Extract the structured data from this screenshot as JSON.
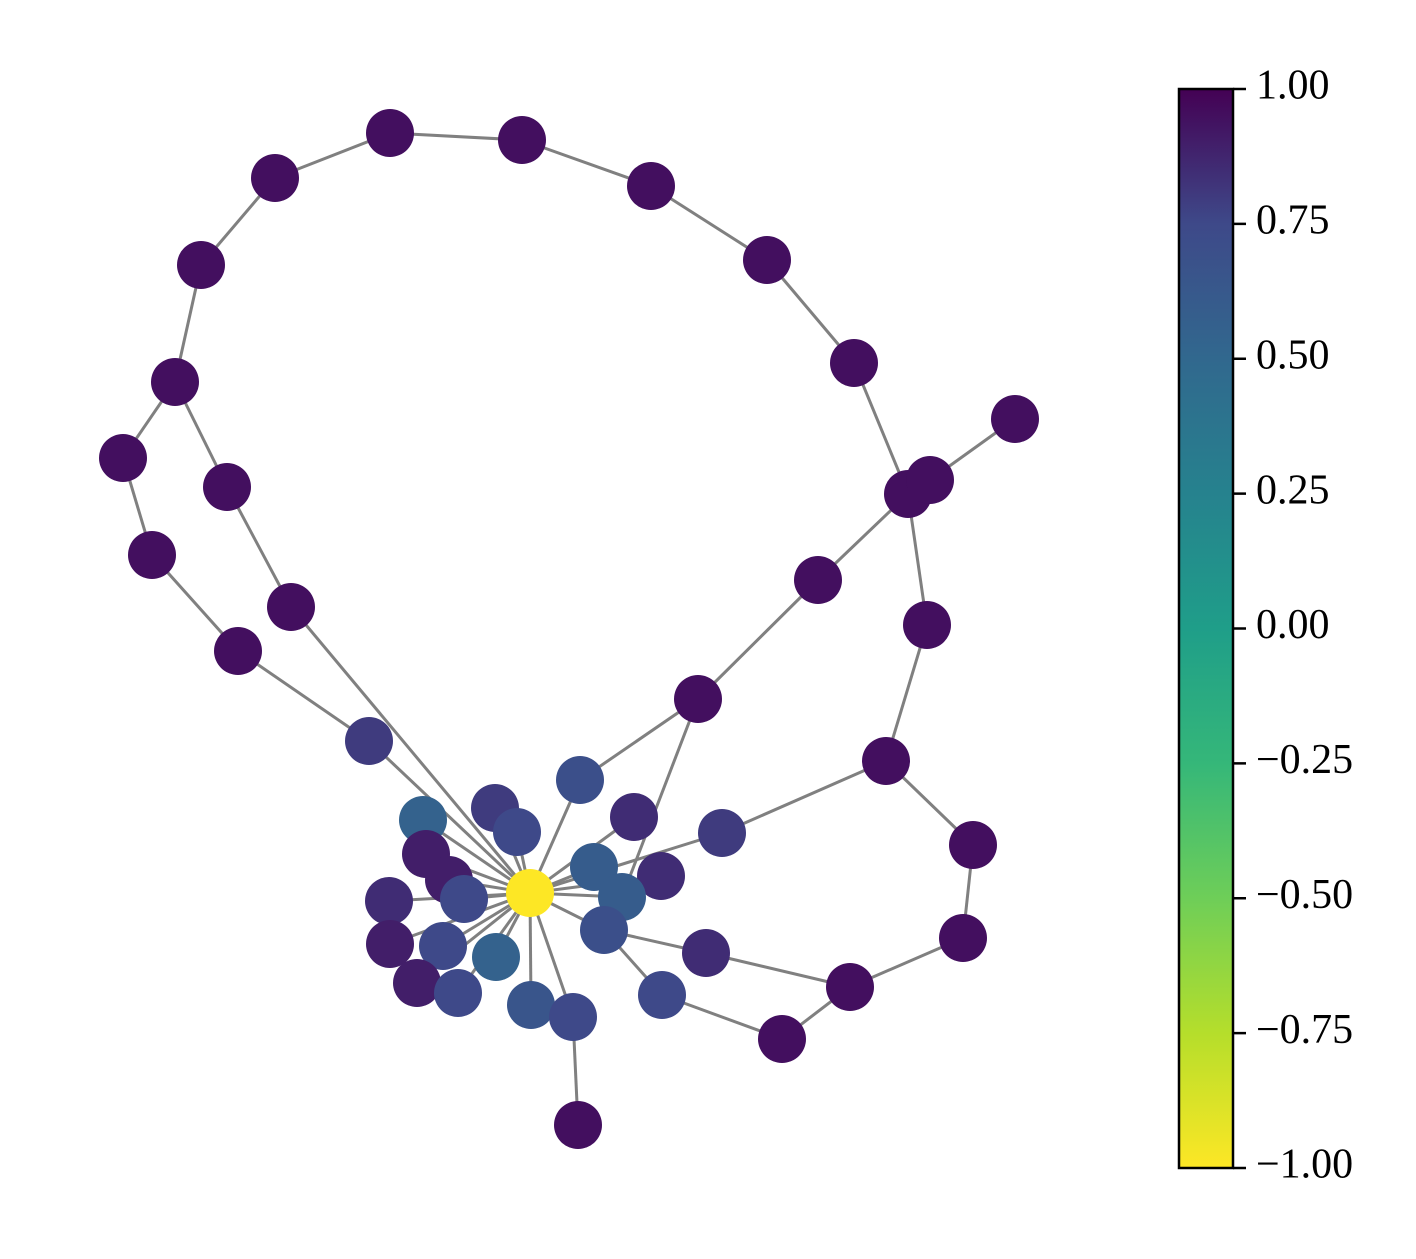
{
  "chart_data": {
    "type": "network",
    "values": [
      -1.0,
      0.95,
      0.95,
      0.95,
      0.95,
      0.95,
      0.95,
      0.95,
      0.95,
      0.95,
      0.95,
      0.95,
      0.95,
      0.95,
      0.95,
      0.95,
      0.95,
      0.95,
      0.95,
      0.95,
      0.95,
      0.95,
      0.95,
      0.95,
      0.95,
      0.95,
      0.8,
      0.7,
      0.8,
      0.75,
      0.55,
      0.9,
      0.85,
      0.8,
      0.6,
      0.85,
      0.6,
      0.9,
      0.75,
      0.85,
      0.9,
      0.75,
      0.55,
      0.9,
      0.75,
      0.65,
      0.75,
      0.7,
      0.85,
      0.75
    ],
    "ylim": [
      -1,
      1
    ],
    "yticks": [
      {
        "value": -1,
        "label": "−1.00"
      },
      {
        "value": -0.75,
        "label": "−0.75"
      },
      {
        "value": -0.5,
        "label": "−0.50"
      },
      {
        "value": -0.25,
        "label": "−0.25"
      },
      {
        "value": 0,
        "label": "0.00"
      },
      {
        "value": 0.25,
        "label": "0.25"
      },
      {
        "value": 0.5,
        "label": "0.50"
      },
      {
        "value": 0.75,
        "label": "0.75"
      },
      {
        "value": 1,
        "label": "1.00"
      }
    ]
  }
}
